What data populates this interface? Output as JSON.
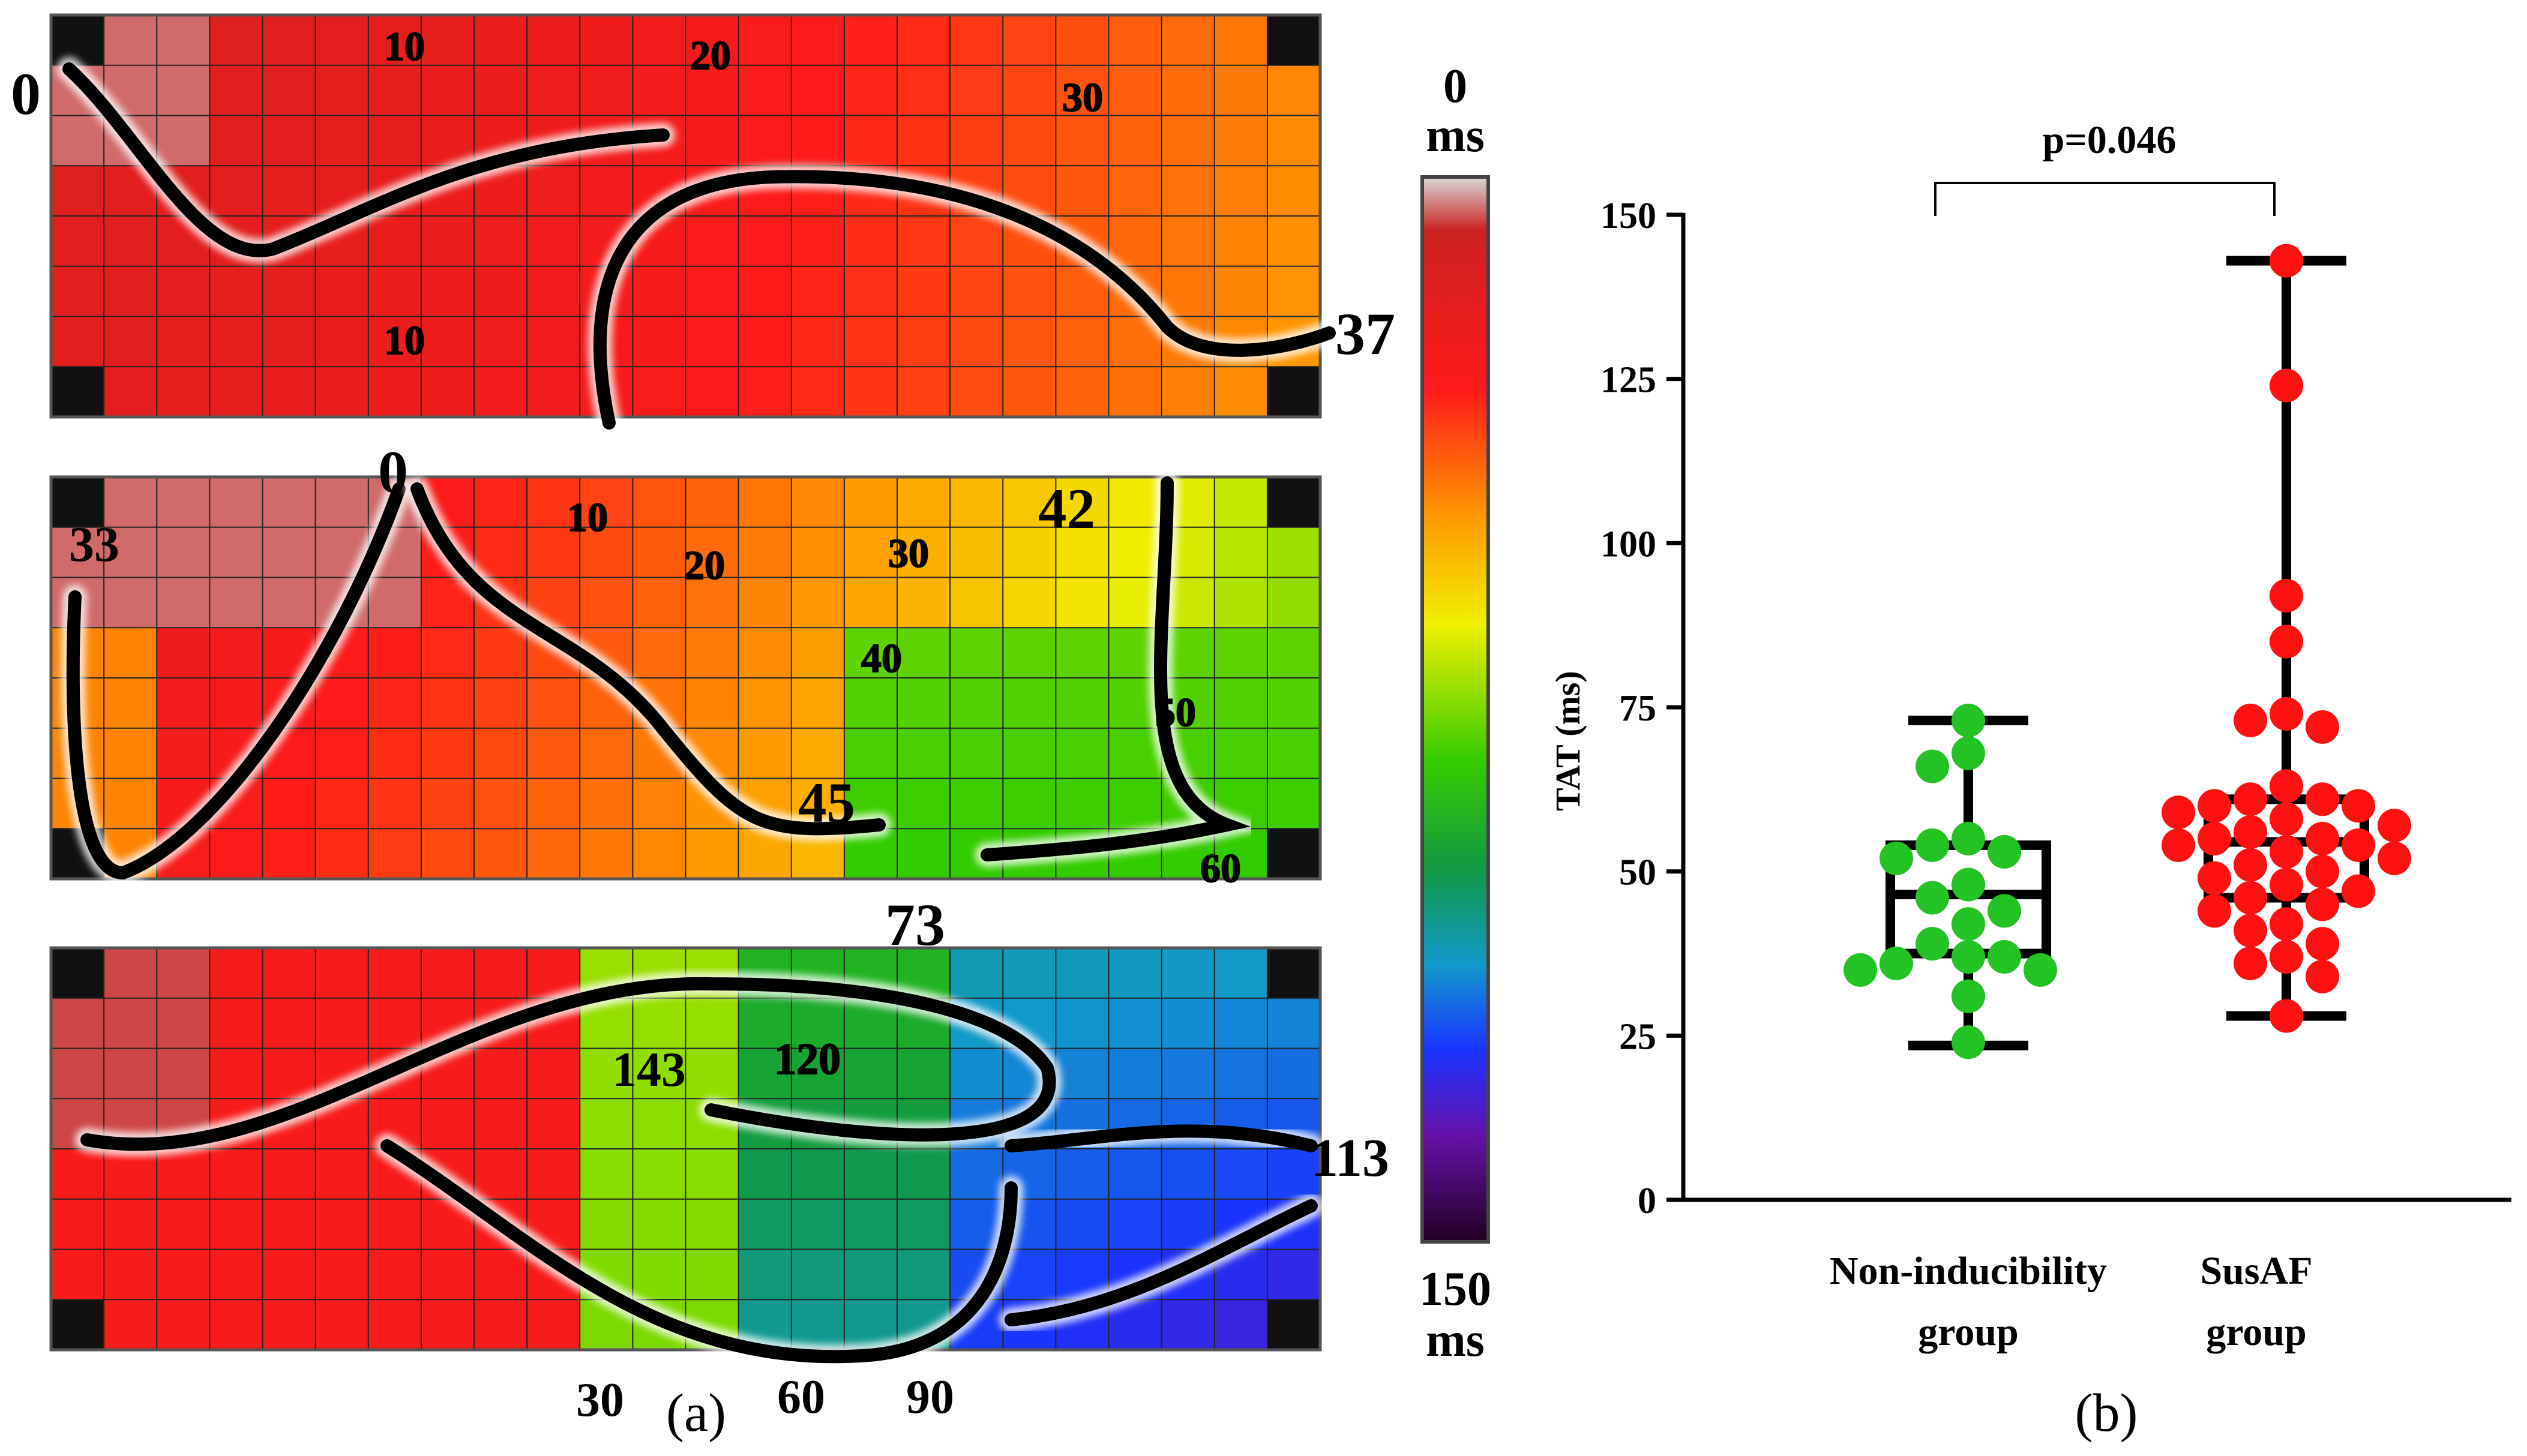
{
  "panel_a": {
    "label": "(a)",
    "colorbar": {
      "top_value": "0",
      "top_unit": "ms",
      "bottom_value": "150",
      "bottom_unit": "ms",
      "min": 0,
      "max": 150
    },
    "maps": [
      {
        "time_labels": [
          "0",
          "37"
        ],
        "contour_labels": [
          "10",
          "20",
          "30",
          "10"
        ]
      },
      {
        "time_labels": [
          "0",
          "33",
          "42",
          "45",
          "73"
        ],
        "contour_labels": [
          "10",
          "20",
          "30",
          "40",
          "50",
          "60"
        ]
      },
      {
        "time_labels": [
          "143",
          "120",
          "113"
        ],
        "contour_labels": [
          "30",
          "60",
          "90"
        ]
      }
    ]
  },
  "panel_b": {
    "label": "(b)"
  },
  "colors": {
    "green_group": "#22c322",
    "red_group": "#ff1111",
    "axis": "#000000"
  },
  "chart_data": {
    "type": "box-scatter",
    "ylabel": "TAT (ms)",
    "xlabel": "",
    "ylim": [
      0,
      150
    ],
    "yticks": [
      0,
      25,
      50,
      75,
      100,
      125,
      150
    ],
    "categories": [
      "Non-inducibility group",
      "SusAF group"
    ],
    "category_lines": [
      [
        "Non-inducibility",
        "group"
      ],
      [
        "SusAF",
        "group"
      ]
    ],
    "annotation": "p=0.046",
    "series": [
      {
        "box": {
          "min": 23.5,
          "q1": 37.5,
          "median": 46.5,
          "q3": 54,
          "max": 73
        },
        "points": [
          73,
          68,
          66,
          55,
          54,
          53,
          52,
          48,
          46,
          44,
          42,
          39,
          37,
          37,
          36,
          35,
          35,
          31,
          24
        ]
      },
      {
        "box": {
          "min": 28,
          "q1": 46,
          "median": 54.5,
          "q3": 61,
          "max": 143
        },
        "points": [
          143,
          124,
          92,
          85,
          74,
          73,
          72,
          63,
          61,
          61,
          60,
          60,
          59,
          58,
          57,
          56,
          55,
          55,
          54,
          54,
          53,
          52,
          51,
          50,
          49,
          48,
          47,
          46,
          45,
          44,
          42,
          41,
          39,
          37,
          36,
          34,
          28
        ]
      }
    ]
  }
}
